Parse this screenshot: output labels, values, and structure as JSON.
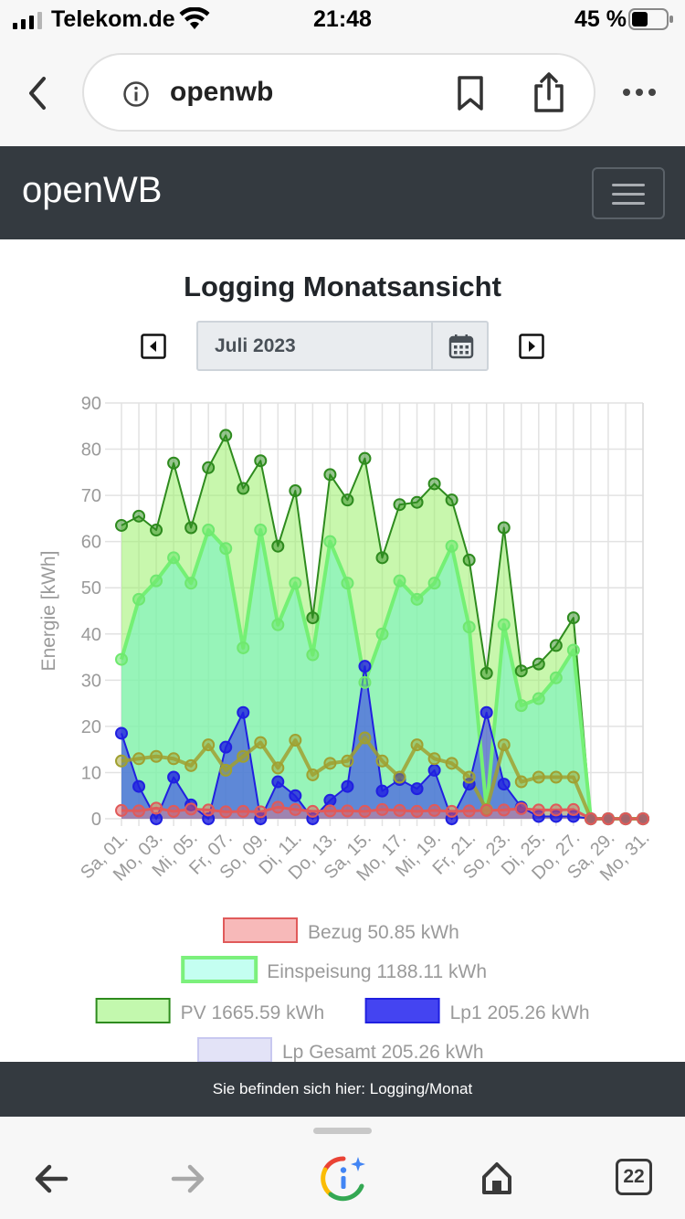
{
  "status_bar": {
    "carrier": "Telekom.de",
    "time": "21:48",
    "battery": "45 %"
  },
  "browser": {
    "url": "openwb",
    "tabs_count": "22"
  },
  "navbar": {
    "brand": "openWB"
  },
  "page": {
    "title": "Logging Monatsansicht",
    "month": "Juli 2023"
  },
  "footer": {
    "breadcrumb": "Sie befinden sich hier: Logging/Monat"
  },
  "colors": {
    "bezug": "#e05a5a",
    "einspeisung": "#7cf07c",
    "pv": "#2e8b1e",
    "lp1": "#2020e0",
    "lp_gesamt": "#c8c8f0",
    "soc": "#a0a030"
  },
  "chart_data": {
    "type": "line",
    "title": "",
    "ylabel": "Energie [kWh]",
    "ylim": [
      0,
      90
    ],
    "yticks": [
      "0",
      "10",
      "20",
      "30",
      "40",
      "50",
      "60",
      "70",
      "80",
      "90"
    ],
    "x_tick_labels": [
      "Sa, 01.",
      "Mo, 03.",
      "Mi, 05.",
      "Fr, 07.",
      "So, 09.",
      "Di, 11.",
      "Do, 13.",
      "Sa, 15.",
      "Mo, 17.",
      "Mi, 19.",
      "Fr, 21.",
      "So, 23.",
      "Di, 25.",
      "Do, 27.",
      "Sa, 29.",
      "Mo, 31."
    ],
    "x": [
      1,
      2,
      3,
      4,
      5,
      6,
      7,
      8,
      9,
      10,
      11,
      12,
      13,
      14,
      15,
      16,
      17,
      18,
      19,
      20,
      21,
      22,
      23,
      24,
      25,
      26,
      27,
      28,
      29,
      30,
      31
    ],
    "series": [
      {
        "name": "Bezug 50.85 kWh",
        "key": "bezug",
        "fill": true,
        "values": [
          1.8,
          1.7,
          2.3,
          1.6,
          2.1,
          1.9,
          1.5,
          1.6,
          1.5,
          2.5,
          2.0,
          1.6,
          1.7,
          1.7,
          1.6,
          2.0,
          1.8,
          1.6,
          1.8,
          1.6,
          1.7,
          1.8,
          1.9,
          2.2,
          1.9,
          1.9,
          2.0,
          0,
          0,
          0,
          0
        ]
      },
      {
        "name": "Einspeisung 1188.11 kWh",
        "key": "einspeisung",
        "fill": true,
        "values": [
          34.5,
          47.5,
          51.5,
          56.5,
          51.0,
          62.5,
          58.5,
          37.0,
          62.5,
          42.0,
          51.0,
          35.5,
          60.0,
          51.0,
          29.5,
          40.0,
          51.5,
          47.5,
          51.0,
          59.0,
          41.5,
          2.0,
          42.0,
          24.5,
          26.0,
          30.5,
          36.5,
          0,
          0,
          0,
          0
        ]
      },
      {
        "name": "PV 1665.59 kWh",
        "key": "pv",
        "fill": true,
        "values": [
          63.5,
          65.5,
          62.5,
          77.0,
          63.0,
          76.0,
          83.0,
          71.5,
          77.5,
          59.0,
          71.0,
          43.5,
          74.5,
          69.0,
          78.0,
          56.5,
          68.0,
          68.5,
          72.5,
          69.0,
          56.0,
          31.5,
          63.0,
          32.0,
          33.5,
          37.5,
          43.5,
          0,
          0,
          0,
          0
        ]
      },
      {
        "name": "Lp1 205.26 kWh",
        "key": "lp1",
        "fill": true,
        "values": [
          18.5,
          7.0,
          0,
          9.0,
          3.0,
          0,
          15.5,
          23.0,
          0,
          8.0,
          5.0,
          0,
          4.0,
          7.0,
          33.0,
          6.0,
          8.5,
          6.5,
          10.5,
          0,
          7.5,
          23.0,
          7.5,
          2.5,
          0.5,
          0.5,
          0.5,
          0,
          0,
          0,
          0
        ]
      },
      {
        "name": "Lp Gesamt 205.26 kWh",
        "key": "lp_gesamt",
        "fill": true,
        "values": [
          18.5,
          7.0,
          0,
          9.0,
          3.0,
          0,
          15.5,
          23.0,
          0,
          8.0,
          5.0,
          0,
          4.0,
          7.0,
          33.0,
          6.0,
          8.5,
          6.5,
          10.5,
          0,
          7.5,
          23.0,
          7.5,
          2.5,
          0.5,
          0.5,
          0.5,
          0,
          0,
          0,
          0
        ]
      },
      {
        "name": "",
        "key": "soc",
        "fill": false,
        "values": [
          12.5,
          13.0,
          13.5,
          13.0,
          11.5,
          16.0,
          10.5,
          13.5,
          16.5,
          11.0,
          17.0,
          9.5,
          12.0,
          12.5,
          17.5,
          12.5,
          9.0,
          16.0,
          13.0,
          12.0,
          9.0,
          2.0,
          16.0,
          8.0,
          9.0,
          9.0,
          9.0,
          0,
          0,
          0,
          0
        ]
      }
    ],
    "grid": true,
    "legend_position": "bottom"
  }
}
